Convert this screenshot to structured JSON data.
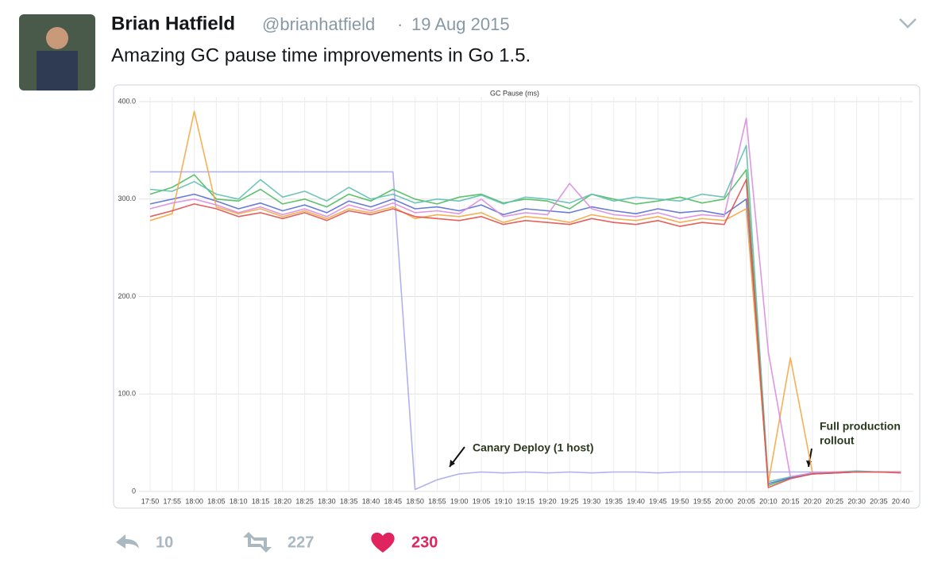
{
  "tweet": {
    "name": "Brian Hatfield",
    "handle": "@brianhatfield",
    "separator": "·",
    "date": "19 Aug 2015",
    "text": "Amazing GC pause time improvements in Go 1.5.",
    "replies": "10",
    "retweets": "227",
    "likes": "230"
  },
  "chart_data": {
    "type": "line",
    "title": "GC Pause (ms)",
    "x": [
      "17:50",
      "17:55",
      "18:00",
      "18:05",
      "18:10",
      "18:15",
      "18:20",
      "18:25",
      "18:30",
      "18:35",
      "18:40",
      "18:45",
      "18:50",
      "18:55",
      "19:00",
      "19:05",
      "19:10",
      "19:15",
      "19:20",
      "19:25",
      "19:30",
      "19:35",
      "19:40",
      "19:45",
      "19:50",
      "19:55",
      "20:00",
      "20:05",
      "20:10",
      "20:15",
      "20:20",
      "20:25",
      "20:30",
      "20:35",
      "20:40"
    ],
    "ylim": [
      0,
      400
    ],
    "yticks": [
      0,
      {
        "value": 100,
        "label": "100.0"
      },
      {
        "value": 200,
        "label": "200.0"
      },
      {
        "value": 300,
        "label": "300.0"
      },
      {
        "value": 400,
        "label": "400.0"
      }
    ],
    "grid": true,
    "series": [
      {
        "color": "#a9a9f0",
        "values": [
          328,
          328,
          328,
          328,
          328,
          328,
          328,
          328,
          328,
          328,
          328,
          328,
          2,
          12,
          18,
          20,
          19,
          20,
          19,
          20,
          19,
          20,
          20,
          19,
          20,
          20,
          20,
          20,
          20,
          20,
          20,
          20,
          20,
          20,
          20
        ]
      },
      {
        "color": "#4dbd5a",
        "values": [
          305,
          312,
          325,
          300,
          298,
          310,
          295,
          300,
          292,
          305,
          298,
          310,
          300,
          295,
          302,
          305,
          296,
          300,
          298,
          290,
          305,
          300,
          295,
          298,
          302,
          296,
          300,
          330,
          6,
          14,
          18,
          19,
          20,
          20,
          20
        ]
      },
      {
        "color": "#5fbfb0",
        "values": [
          310,
          308,
          318,
          305,
          300,
          320,
          302,
          308,
          298,
          312,
          300,
          305,
          296,
          300,
          298,
          304,
          295,
          302,
          300,
          296,
          305,
          298,
          302,
          300,
          298,
          305,
          302,
          355,
          10,
          15,
          19,
          20,
          21,
          20,
          20
        ]
      },
      {
        "color": "#5a6fd0",
        "values": [
          295,
          300,
          305,
          298,
          290,
          296,
          288,
          294,
          286,
          298,
          292,
          300,
          290,
          292,
          288,
          294,
          284,
          290,
          288,
          286,
          292,
          288,
          285,
          290,
          286,
          288,
          284,
          300,
          8,
          14,
          18,
          19,
          20,
          20,
          20
        ]
      },
      {
        "color": "#f5a742",
        "values": [
          278,
          285,
          390,
          292,
          285,
          290,
          282,
          288,
          280,
          290,
          286,
          292,
          280,
          284,
          282,
          286,
          276,
          282,
          280,
          276,
          284,
          280,
          278,
          282,
          276,
          280,
          278,
          290,
          9,
          137,
          19,
          20,
          20,
          20,
          20
        ]
      },
      {
        "color": "#d98ce0",
        "values": [
          290,
          296,
          300,
          294,
          286,
          292,
          284,
          290,
          282,
          294,
          288,
          296,
          286,
          288,
          285,
          300,
          282,
          286,
          284,
          316,
          290,
          284,
          282,
          286,
          280,
          284,
          282,
          383,
          143,
          15,
          19,
          20,
          20,
          20,
          20
        ]
      },
      {
        "color": "#e2504a",
        "values": [
          282,
          288,
          295,
          290,
          282,
          286,
          280,
          286,
          278,
          288,
          284,
          290,
          282,
          280,
          278,
          282,
          274,
          278,
          276,
          274,
          280,
          276,
          274,
          278,
          272,
          276,
          274,
          320,
          4,
          13,
          18,
          19,
          20,
          20,
          19
        ]
      }
    ],
    "annotations": [
      {
        "lines": [
          "Canary Deploy (1 host)"
        ]
      },
      {
        "lines": [
          "Full production",
          "rollout"
        ]
      }
    ]
  }
}
